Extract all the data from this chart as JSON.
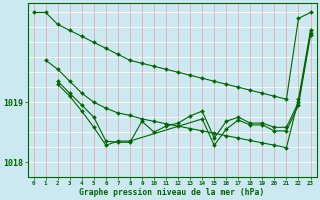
{
  "title": "Graphe pression niveau de la mer (hPa)",
  "background_color": "#cce8f0",
  "grid_color_v": "#e8a0a0",
  "grid_color_h": "#ffffff",
  "line_color": "#006600",
  "xlim": [
    -0.5,
    23.5
  ],
  "ylim": [
    1017.75,
    1020.65
  ],
  "yticks": [
    1018,
    1019
  ],
  "xticks": [
    0,
    1,
    2,
    3,
    4,
    5,
    6,
    7,
    8,
    9,
    10,
    11,
    12,
    13,
    14,
    15,
    16,
    17,
    18,
    19,
    20,
    21,
    22,
    23
  ],
  "hgrid_vals": [
    1017.75,
    1018.0,
    1018.25,
    1018.5,
    1018.75,
    1019.0,
    1019.25,
    1019.5,
    1019.75,
    1020.0,
    1020.25,
    1020.5
  ],
  "series": [
    {
      "x": [
        0,
        1,
        2,
        3,
        4,
        5,
        6,
        7,
        8,
        9,
        10,
        11,
        12,
        13,
        14,
        15,
        16,
        17,
        18,
        19,
        20,
        21,
        22,
        23
      ],
      "y": [
        1020.5,
        1020.5,
        1020.3,
        1020.2,
        1020.1,
        1020.0,
        1019.9,
        1019.8,
        1019.7,
        1019.65,
        1019.6,
        1019.55,
        1019.5,
        1019.45,
        1019.4,
        1019.35,
        1019.3,
        1019.25,
        1019.2,
        1019.15,
        1019.1,
        1019.05,
        1020.4,
        1020.5
      ]
    },
    {
      "x": [
        1,
        2,
        3,
        4,
        5,
        6,
        7,
        8,
        9,
        10,
        11,
        12,
        13,
        14,
        15,
        16,
        17,
        18,
        19,
        20,
        21,
        22,
        23
      ],
      "y": [
        1019.7,
        1019.55,
        1019.35,
        1019.15,
        1019.0,
        1018.9,
        1018.82,
        1018.78,
        1018.72,
        1018.68,
        1018.64,
        1018.6,
        1018.56,
        1018.52,
        1018.48,
        1018.44,
        1018.4,
        1018.36,
        1018.32,
        1018.28,
        1018.24,
        1019.05,
        1020.2
      ]
    },
    {
      "x": [
        2,
        3,
        4,
        5,
        6,
        7,
        8,
        9,
        10,
        11,
        12,
        13,
        14,
        15,
        16,
        17,
        18,
        19,
        20,
        21,
        22,
        23
      ],
      "y": [
        1019.35,
        1019.15,
        1018.95,
        1018.75,
        1018.35,
        1018.33,
        1018.33,
        1018.68,
        1018.5,
        1018.6,
        1018.65,
        1018.77,
        1018.85,
        1018.4,
        1018.68,
        1018.75,
        1018.65,
        1018.65,
        1018.58,
        1018.58,
        1019.0,
        1020.15
      ]
    },
    {
      "x": [
        2,
        3,
        4,
        5,
        6,
        7,
        8,
        14,
        15,
        16,
        17,
        18,
        19,
        20,
        21,
        22,
        23
      ],
      "y": [
        1019.3,
        1019.1,
        1018.85,
        1018.58,
        1018.28,
        1018.35,
        1018.35,
        1018.72,
        1018.28,
        1018.55,
        1018.7,
        1018.62,
        1018.62,
        1018.52,
        1018.52,
        1018.95,
        1020.12
      ]
    }
  ]
}
